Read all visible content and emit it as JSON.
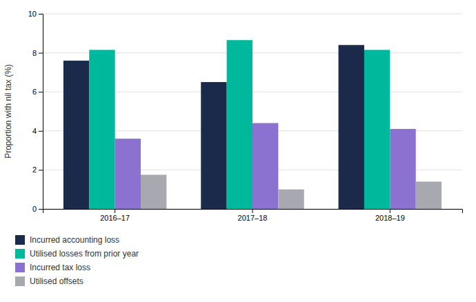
{
  "chart_data": {
    "type": "bar",
    "categories": [
      "2016–17",
      "2017–18",
      "2018–19"
    ],
    "series": [
      {
        "name": "Incurred accounting loss",
        "color": "#1b2a4a",
        "values": [
          7.6,
          6.5,
          8.4
        ]
      },
      {
        "name": "Utilised losses from prior year",
        "color": "#00b89c",
        "values": [
          8.15,
          8.65,
          8.15
        ]
      },
      {
        "name": "Incurred tax loss",
        "color": "#8b72d0",
        "values": [
          3.6,
          4.4,
          4.1
        ]
      },
      {
        "name": "Utilised offsets",
        "color": "#a8a8b0",
        "values": [
          1.75,
          1.0,
          1.4
        ]
      }
    ],
    "ylabel": "Proportion with nil tax (%)",
    "ylim": [
      0,
      10
    ],
    "yticks": [
      0,
      2,
      4,
      6,
      8,
      10
    ],
    "grid": true,
    "legend": "bottom"
  }
}
